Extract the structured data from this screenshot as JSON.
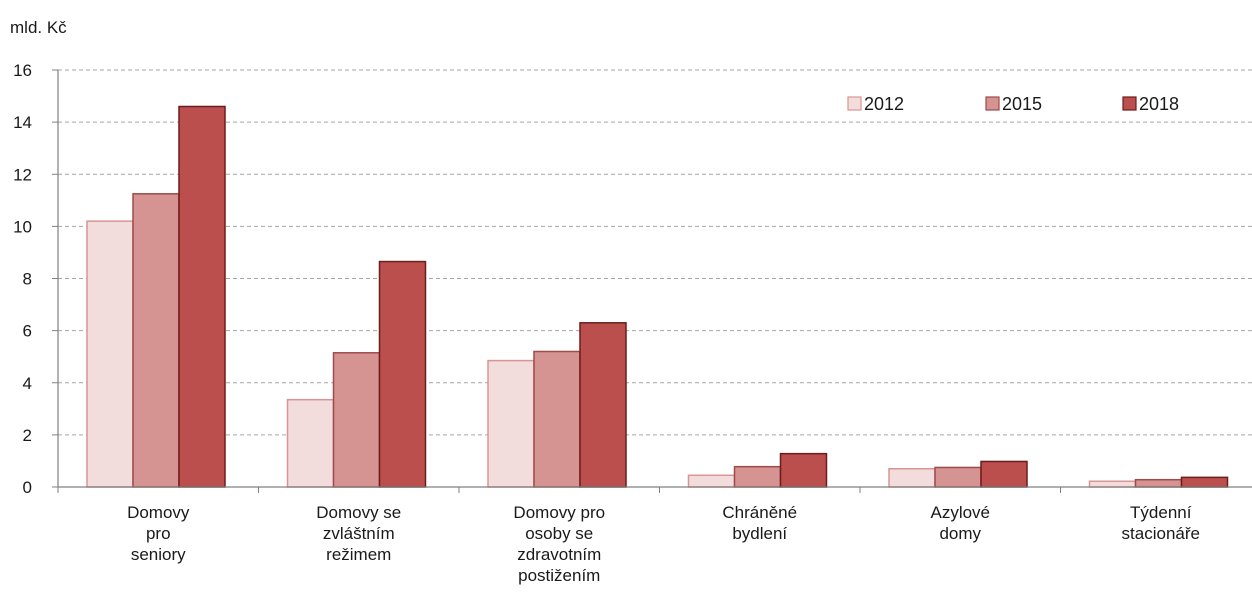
{
  "chart_data": {
    "type": "bar",
    "ylabel": "mld. Kč",
    "ylim": [
      0,
      16
    ],
    "yticks": [
      "0",
      "2",
      "4",
      "6",
      "8",
      "10",
      "12",
      "14",
      "16"
    ],
    "grid": true,
    "legend_position": "top-right",
    "categories": [
      [
        "Domovy",
        "pro",
        "seniory"
      ],
      [
        "Domovy se",
        "zvláštním",
        "režimem"
      ],
      [
        "Domovy pro",
        "osoby se",
        "zdravotním",
        "postižením"
      ],
      [
        "Chráněné",
        "bydlení"
      ],
      [
        "Azylové",
        "domy"
      ],
      [
        "Týdenní",
        "stacionáře"
      ]
    ],
    "series": [
      {
        "name": "2012",
        "color": "#f2dcdc",
        "stroke": "#d99594",
        "values": [
          10.2,
          3.35,
          4.85,
          0.45,
          0.7,
          0.22
        ]
      },
      {
        "name": "2015",
        "color": "#d59392",
        "stroke": "#9e4b4a",
        "values": [
          11.25,
          5.15,
          5.2,
          0.78,
          0.75,
          0.28
        ]
      },
      {
        "name": "2018",
        "color": "#bb4f4d",
        "stroke": "#6e1c1b",
        "values": [
          14.6,
          8.65,
          6.3,
          1.28,
          0.98,
          0.37
        ]
      }
    ]
  }
}
